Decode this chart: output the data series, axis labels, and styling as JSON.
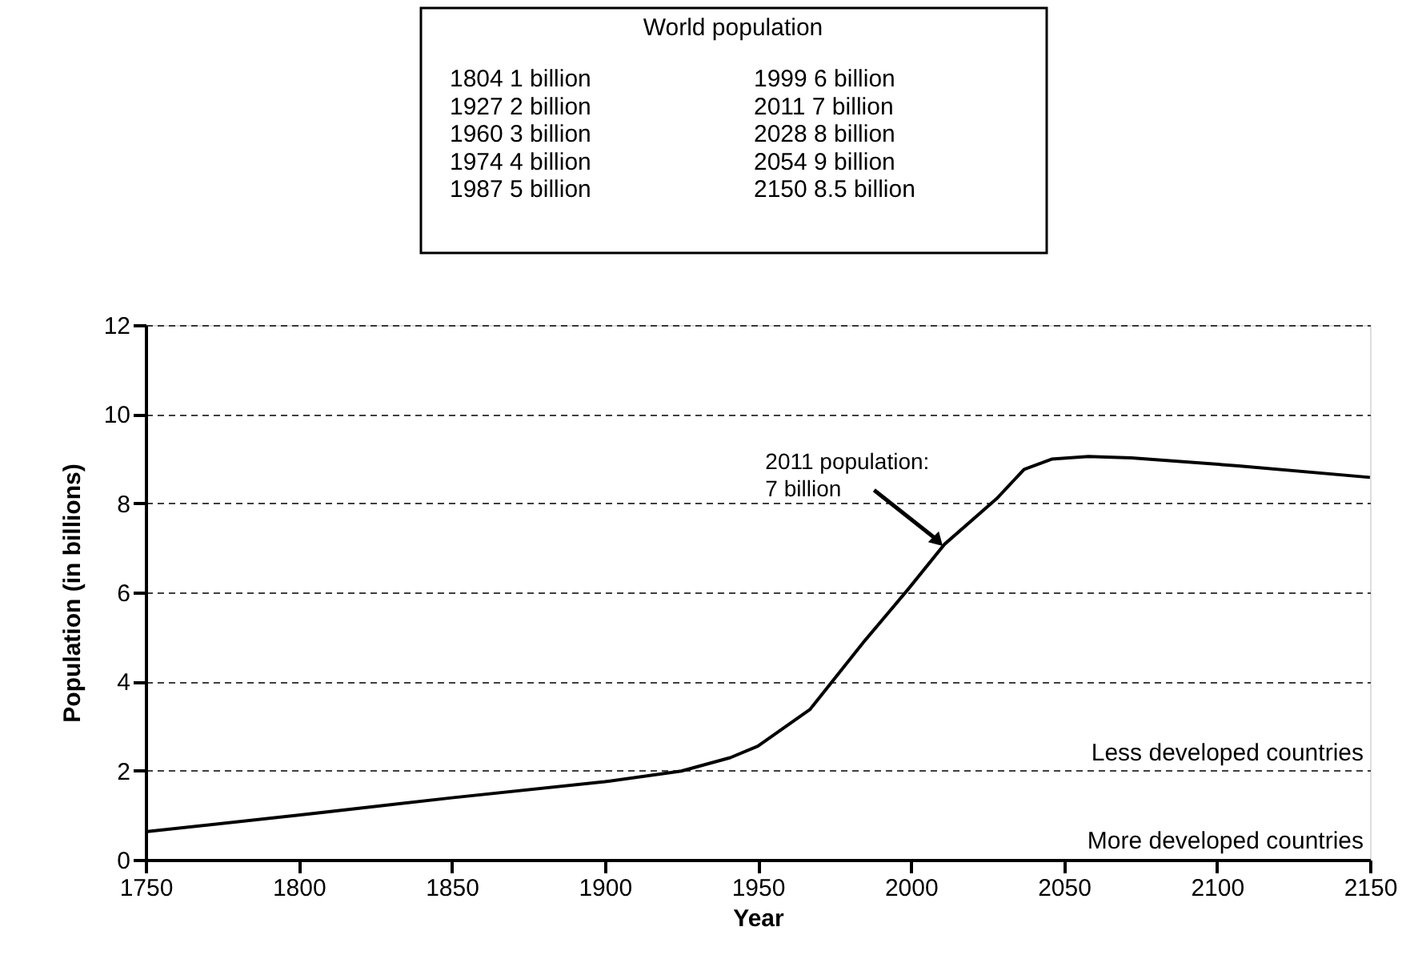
{
  "chart_data": {
    "type": "line",
    "xlabel": "Year",
    "ylabel": "Population (in billions)",
    "x": [
      1750,
      1800,
      1850,
      1900,
      1925,
      1941,
      1950,
      1967,
      1985,
      1999,
      2011,
      2028,
      2037,
      2046,
      2058,
      2072,
      2107,
      2150
    ],
    "values": [
      0.63,
      1.0,
      1.39,
      1.75,
      1.99,
      2.29,
      2.55,
      3.37,
      4.92,
      6.06,
      7.08,
      8.1,
      8.76,
      8.99,
      9.05,
      9.02,
      8.84,
      8.58
    ],
    "color": "#000000",
    "xlim": [
      1750,
      2150
    ],
    "xticks": [
      1750,
      1800,
      1850,
      1900,
      1950,
      2000,
      2050,
      2100,
      2150
    ],
    "ylim": [
      0,
      12
    ],
    "yticks": [
      0,
      2,
      4,
      6,
      8,
      10,
      12
    ],
    "grid": "y",
    "line_style": "solid",
    "marker": "none",
    "annotations": [
      "World population",
      "1804 1 billion",
      "1927 2 billion",
      "1960 3 billion",
      "1974 4 billion",
      "1987 5 billion",
      "1999 6 billion",
      "2011 7 billion",
      "2028 8 billion",
      "2054 9 billion",
      "2150 8.5 billion",
      {
        "text": "2011 population:\n7 billion",
        "x": 2011,
        "y": 7
      },
      "Less developed countries",
      "More developed countries"
    ]
  }
}
